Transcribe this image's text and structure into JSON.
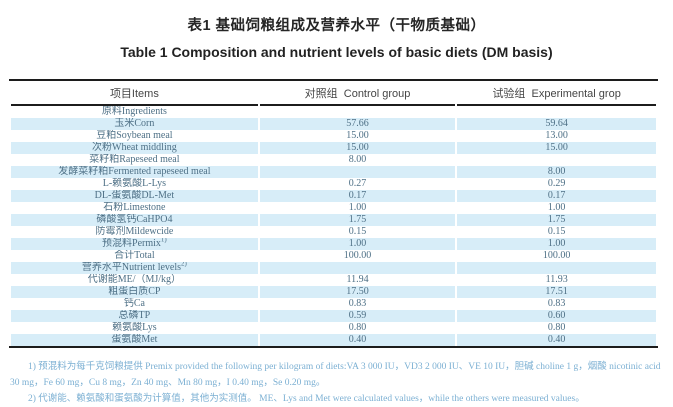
{
  "title": {
    "zh": "表1 基础饲粮组成及营养水平（干物质基础）",
    "en": "Table 1 Composition and nutrient levels of basic diets (DM basis)"
  },
  "table": {
    "columns": [
      "项目Items",
      "对照组  Control group",
      "试验组  Experimental grop"
    ],
    "rows": [
      {
        "item": "原料Ingredients",
        "sup": "",
        "control": "",
        "experimental": ""
      },
      {
        "item": "玉米Corn",
        "sup": "",
        "control": "57.66",
        "experimental": "59.64"
      },
      {
        "item": "豆粕Soybean meal",
        "sup": "",
        "control": "15.00",
        "experimental": "13.00"
      },
      {
        "item": "次粉Wheat middling",
        "sup": "",
        "control": "15.00",
        "experimental": "15.00"
      },
      {
        "item": "菜籽粕Rapeseed meal",
        "sup": "",
        "control": "8.00",
        "experimental": ""
      },
      {
        "item": "发酵菜籽粕Fermented rapeseed meal",
        "sup": "",
        "control": "",
        "experimental": "8.00"
      },
      {
        "item": "L-赖氨酸L-Lys",
        "sup": "",
        "control": "0.27",
        "experimental": "0.29"
      },
      {
        "item": "DL-蛋氨酸DL-Met",
        "sup": "",
        "control": "0.17",
        "experimental": "0.17"
      },
      {
        "item": "石粉Limestone",
        "sup": "",
        "control": "1.00",
        "experimental": "1.00"
      },
      {
        "item": "磷酸氢钙CaHPO4",
        "sup": "",
        "control": "1.75",
        "experimental": "1.75"
      },
      {
        "item": "防霉剂Mildewcide",
        "sup": "",
        "control": "0.15",
        "experimental": "0.15"
      },
      {
        "item": "预混料Permix",
        "sup": "1)",
        "control": "1.00",
        "experimental": "1.00"
      },
      {
        "item": "合计Total",
        "sup": "",
        "control": "100.00",
        "experimental": "100.00"
      },
      {
        "item": "营养水平Nutrient levels",
        "sup": "2)",
        "control": "",
        "experimental": ""
      },
      {
        "item": "代谢能ME/（MJ/kg）",
        "sup": "",
        "control": "11.94",
        "experimental": "11.93"
      },
      {
        "item": "粗蛋白质CP",
        "sup": "",
        "control": "17.50",
        "experimental": "17.51"
      },
      {
        "item": "钙Ca",
        "sup": "",
        "control": "0.83",
        "experimental": "0.83"
      },
      {
        "item": "总磷TP",
        "sup": "",
        "control": "0.59",
        "experimental": "0.60"
      },
      {
        "item": "赖氨酸Lys",
        "sup": "",
        "control": "0.80",
        "experimental": "0.80"
      },
      {
        "item": "蛋氨酸Met",
        "sup": "",
        "control": "0.40",
        "experimental": "0.40"
      }
    ]
  },
  "footnotes": [
    "1) 预混料为每千克饲粮提供 Premix provided the following per kilogram of diets:VA 3 000 IU，VD3 2 000 IU、VE 10 IU，胆碱 choline 1 g，烟酸 nicotinic acid 30 mg，Fe 60 mg，Cu 8 mg，Zn 40 mg、Mn 80 mg，I 0.40 mg，Se 0.20 mg。",
    "2) 代谢能、赖氨酸和蛋氨酸为计算值，其他为实测值。 ME、Lys and Met were calculated values，while the others were measured values。"
  ],
  "colors": {
    "stripe": "#d7edf8",
    "body_text": "#4e7086",
    "footnote_text": "#7cb0d3",
    "rule": "#1c1c1c"
  }
}
